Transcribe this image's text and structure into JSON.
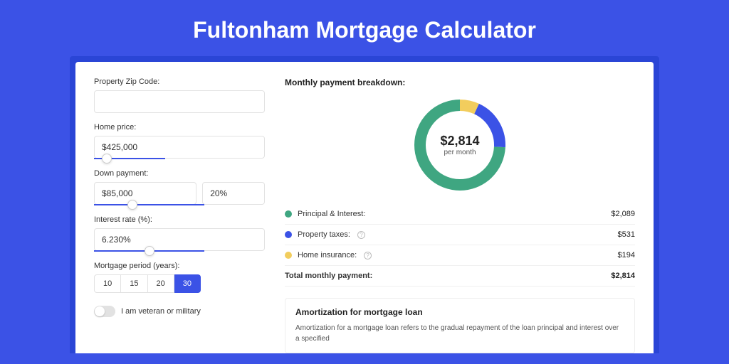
{
  "page": {
    "title": "Fultonham Mortgage Calculator",
    "background_color": "#3b52e6",
    "band_color": "#2a45d6"
  },
  "form": {
    "zip": {
      "label": "Property Zip Code:",
      "value": ""
    },
    "home_price": {
      "label": "Home price:",
      "value": "$425,000",
      "slider_percent": 11
    },
    "down_payment": {
      "label": "Down payment:",
      "value": "$85,000",
      "percent": "20%",
      "slider_percent": 30
    },
    "interest_rate": {
      "label": "Interest rate (%):",
      "value": "6.230%",
      "slider_percent": 46
    },
    "mortgage_period": {
      "label": "Mortgage period (years):",
      "options": [
        "10",
        "15",
        "20",
        "30"
      ],
      "active_index": 3
    },
    "veteran": {
      "label": "I am veteran or military",
      "on": false
    }
  },
  "breakdown": {
    "title": "Monthly payment breakdown:",
    "donut": {
      "amount": "$2,814",
      "sub": "per month",
      "type": "donut",
      "thickness": 16,
      "radius": 56,
      "slices": [
        {
          "name": "home_insurance",
          "color": "#f2cd5d",
          "value": 194
        },
        {
          "name": "property_taxes",
          "color": "#3b52e6",
          "value": 531
        },
        {
          "name": "principal_interest",
          "color": "#3fa681",
          "value": 2089
        }
      ]
    },
    "legend": [
      {
        "key": "principal_interest",
        "label": "Principal & Interest:",
        "color": "#3fa681",
        "value": "$2,089",
        "info": false
      },
      {
        "key": "property_taxes",
        "label": "Property taxes:",
        "color": "#3b52e6",
        "value": "$531",
        "info": true
      },
      {
        "key": "home_insurance",
        "label": "Home insurance:",
        "color": "#f2cd5d",
        "value": "$194",
        "info": true
      }
    ],
    "total": {
      "label": "Total monthly payment:",
      "value": "$2,814"
    }
  },
  "amortization": {
    "title": "Amortization for mortgage loan",
    "text": "Amortization for a mortgage loan refers to the gradual repayment of the loan principal and interest over a specified"
  }
}
